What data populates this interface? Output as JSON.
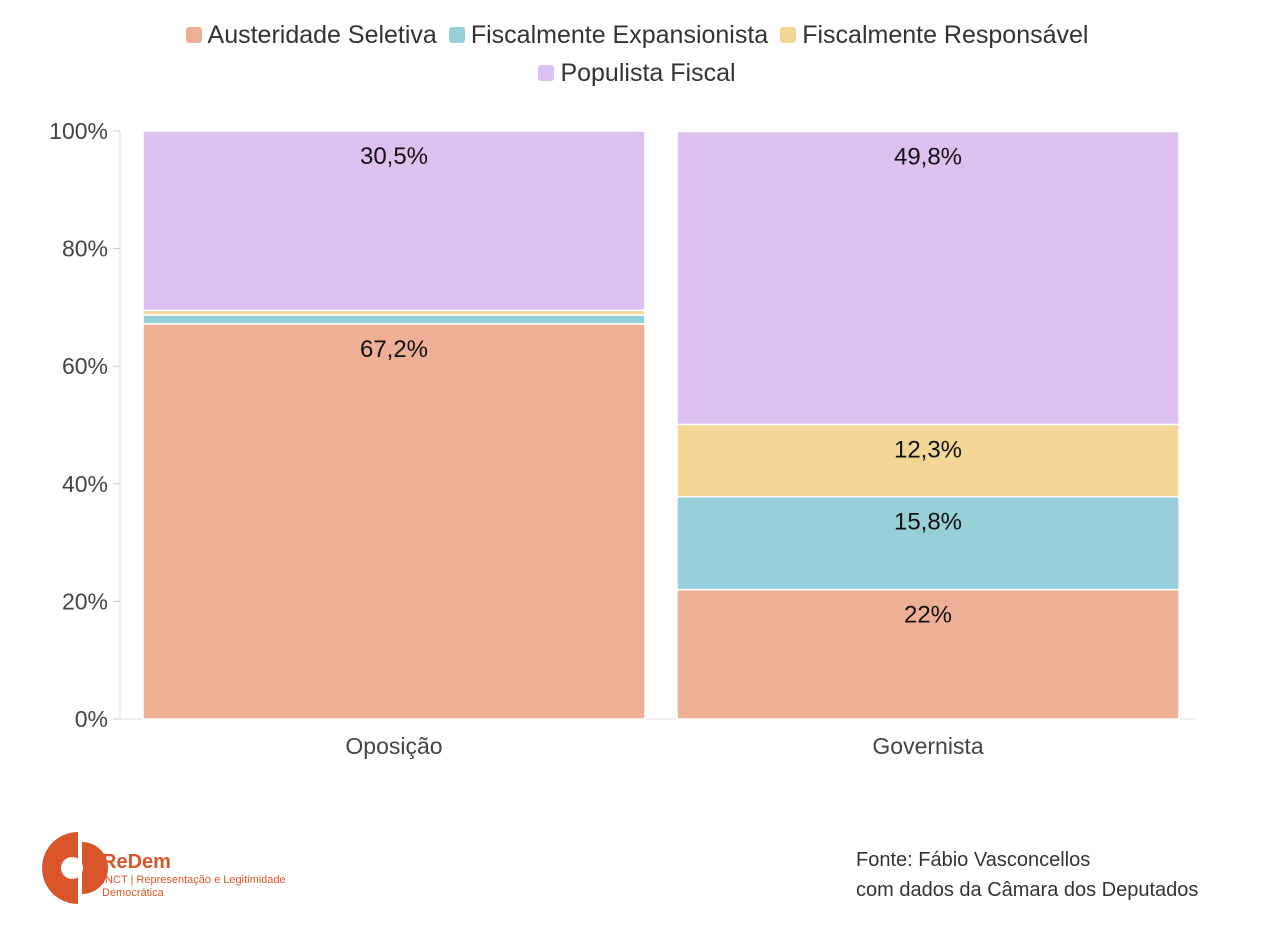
{
  "chart_data": {
    "type": "bar",
    "stacked": true,
    "normalized": true,
    "categories": [
      "Oposição",
      "Governista"
    ],
    "series": [
      {
        "name": "Austeridade Seletiva",
        "color": "#EEB094",
        "values": [
          67.2,
          22.0
        ],
        "labels": [
          "67,2%",
          "22%"
        ]
      },
      {
        "name": "Fiscalmente Expansionista",
        "color": "#96CFD7",
        "values": [
          1.5,
          15.8
        ],
        "labels": [
          "",
          "15,8%"
        ]
      },
      {
        "name": "Fiscalmente Responsável",
        "color": "#F2D796",
        "values": [
          0.8,
          12.3
        ],
        "labels": [
          "",
          "12,3%"
        ]
      },
      {
        "name": "Populista Fiscal",
        "color": "#DCC0EF",
        "values": [
          30.5,
          49.8
        ],
        "labels": [
          "30,5%",
          "49,8%"
        ]
      }
    ],
    "yticks": [
      "0%",
      "20%",
      "40%",
      "60%",
      "80%",
      "100%"
    ],
    "ylim": [
      0,
      100
    ],
    "legend": "top",
    "grid": false
  },
  "source": {
    "line1": "Fonte: Fábio Vasconcellos",
    "line2": "com dados da Câmara dos Deputados"
  },
  "logo": {
    "text": "ReDem",
    "subtitle": "INCT | Representação e Legitimidade Democrática",
    "color": "#D9562B"
  }
}
